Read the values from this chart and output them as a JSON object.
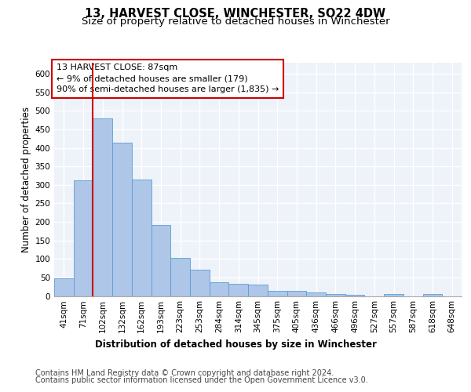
{
  "title": "13, HARVEST CLOSE, WINCHESTER, SO22 4DW",
  "subtitle": "Size of property relative to detached houses in Winchester",
  "xlabel": "Distribution of detached houses by size in Winchester",
  "ylabel": "Number of detached properties",
  "bar_color": "#aec6e8",
  "bar_edge_color": "#5a9fd4",
  "annotation_line_color": "#cc0000",
  "annotation_box_color": "#cc0000",
  "categories": [
    "41sqm",
    "71sqm",
    "102sqm",
    "132sqm",
    "162sqm",
    "193sqm",
    "223sqm",
    "253sqm",
    "284sqm",
    "314sqm",
    "345sqm",
    "375sqm",
    "405sqm",
    "436sqm",
    "466sqm",
    "496sqm",
    "527sqm",
    "557sqm",
    "587sqm",
    "618sqm",
    "648sqm"
  ],
  "values": [
    47,
    312,
    480,
    413,
    315,
    191,
    103,
    70,
    38,
    32,
    30,
    13,
    14,
    9,
    6,
    4,
    0,
    5,
    0,
    5,
    0
  ],
  "property_label": "13 HARVEST CLOSE: 87sqm",
  "annotation_line1": "← 9% of detached houses are smaller (179)",
  "annotation_line2": "90% of semi-detached houses are larger (1,835) →",
  "red_line_x": 1.5,
  "ylim": [
    0,
    630
  ],
  "yticks": [
    0,
    50,
    100,
    150,
    200,
    250,
    300,
    350,
    400,
    450,
    500,
    550,
    600
  ],
  "footer1": "Contains HM Land Registry data © Crown copyright and database right 2024.",
  "footer2": "Contains public sector information licensed under the Open Government Licence v3.0.",
  "background_color": "#eef2f9",
  "grid_color": "#ffffff",
  "fig_bg_color": "#ffffff",
  "title_fontsize": 10.5,
  "subtitle_fontsize": 9.5,
  "axis_label_fontsize": 8.5,
  "tick_fontsize": 7.5,
  "annotation_fontsize": 8,
  "footer_fontsize": 7
}
